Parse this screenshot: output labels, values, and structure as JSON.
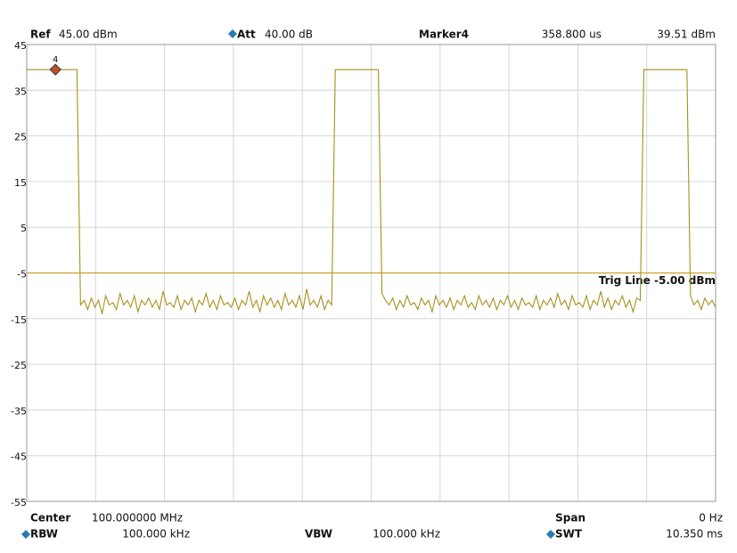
{
  "header": {
    "ref_label": "Ref",
    "ref_value": "45.00 dBm",
    "att_label": "Att",
    "att_value": "40.00 dB",
    "marker_label": "Marker4",
    "marker_time": "358.800 us",
    "marker_level": "39.51 dBm"
  },
  "footer": {
    "center_label": "Center",
    "center_value": "100.000000 MHz",
    "span_label": "Span",
    "span_value": "0 Hz",
    "rbw_label": "RBW",
    "rbw_value": "100.000 kHz",
    "vbw_label": "VBW",
    "vbw_value": "100.000 kHz",
    "swt_label": "SWT",
    "swt_value": "10.350 ms"
  },
  "chart_data": {
    "type": "line",
    "ylim": [
      -55,
      45
    ],
    "yticks": [
      45,
      35,
      25,
      15,
      5,
      -5,
      -15,
      -25,
      -35,
      -45,
      -55
    ],
    "grid": true,
    "trig_line": {
      "value": -5,
      "label": "Trig Line -5.00 dBm",
      "color": "#c9a227"
    },
    "marker": {
      "label": "4",
      "x_index": 8,
      "value": 39.51,
      "color": "#c0502a"
    },
    "series": [
      {
        "color": "#a8901c",
        "values": [
          39.5,
          39.5,
          39.5,
          39.5,
          39.5,
          39.5,
          39.5,
          39.5,
          39.5,
          39.5,
          39.5,
          39.5,
          39.5,
          39.5,
          39.5,
          -12,
          -11,
          -13,
          -10.5,
          -12.5,
          -11,
          -14,
          -10,
          -12,
          -11.5,
          -13,
          -9.5,
          -12,
          -11,
          -12.5,
          -10,
          -13.5,
          -11,
          -12,
          -10.5,
          -12.5,
          -11,
          -13,
          -9,
          -12,
          -11.5,
          -12.5,
          -10,
          -13,
          -11,
          -12,
          -10.5,
          -13.5,
          -11,
          -12,
          -9.5,
          -12.5,
          -11,
          -13,
          -10,
          -12,
          -11.5,
          -12.5,
          -10.5,
          -13,
          -11,
          -12,
          -9,
          -12.5,
          -11,
          -13.5,
          -10,
          -12,
          -10.5,
          -12.5,
          -11,
          -13,
          -9.5,
          -12,
          -11,
          -12.5,
          -10,
          -13,
          -8.5,
          -12,
          -11,
          -12.5,
          -10,
          -13,
          -11,
          -12,
          39.5,
          39.5,
          39.5,
          39.5,
          39.5,
          39.5,
          39.5,
          39.5,
          39.5,
          39.5,
          39.5,
          39.5,
          39.5,
          -9.5,
          -11,
          -12,
          -10.5,
          -13,
          -11,
          -12.5,
          -10,
          -12,
          -11.5,
          -13,
          -10.5,
          -12,
          -11,
          -13.5,
          -10,
          -12,
          -11,
          -12.5,
          -10.5,
          -13,
          -11,
          -12,
          -10,
          -12.5,
          -11.5,
          -13,
          -10,
          -12,
          -11,
          -12.5,
          -10.5,
          -13,
          -11,
          -12,
          -10,
          -12.5,
          -11,
          -13,
          -10.5,
          -12,
          -11.5,
          -12.5,
          -10,
          -13,
          -11,
          -12,
          -10.5,
          -12.5,
          -9.5,
          -12,
          -11,
          -13,
          -10,
          -12,
          -11.5,
          -12.5,
          -10,
          -13,
          -11,
          -12,
          -9,
          -12.5,
          -10.5,
          -13,
          -11,
          -12,
          -10,
          -12.5,
          -11,
          -13.5,
          -10.5,
          -11,
          39.5,
          39.5,
          39.5,
          39.5,
          39.5,
          39.5,
          39.5,
          39.5,
          39.5,
          39.5,
          39.5,
          39.5,
          39.5,
          -10,
          -12,
          -11,
          -13,
          -10.5,
          -12,
          -11,
          -12.5
        ]
      }
    ]
  }
}
